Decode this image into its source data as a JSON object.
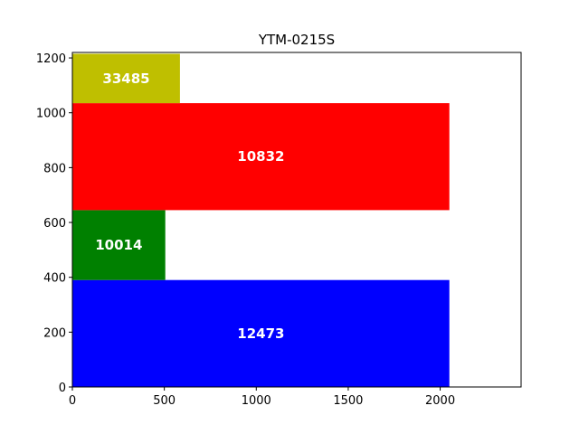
{
  "chart_data": {
    "type": "bar",
    "title": "YTM-0215S",
    "xlabel": "",
    "ylabel": "",
    "xlim": [
      0,
      2440
    ],
    "ylim": [
      0,
      1220
    ],
    "xticks": [
      0,
      500,
      1000,
      1500,
      2000
    ],
    "yticks": [
      0,
      200,
      400,
      600,
      800,
      1000,
      1200
    ],
    "grid": false,
    "rectangles": [
      {
        "id": "12473",
        "x0": 0,
        "x1": 2050,
        "y0": 0,
        "y1": 390,
        "color": "#0000ff"
      },
      {
        "id": "10014",
        "x0": 0,
        "x1": 505,
        "y0": 390,
        "y1": 645,
        "color": "#008000"
      },
      {
        "id": "10832",
        "x0": 0,
        "x1": 2050,
        "y0": 645,
        "y1": 1035,
        "color": "#ff0000"
      },
      {
        "id": "33485",
        "x0": 0,
        "x1": 585,
        "y0": 1035,
        "y1": 1215,
        "color": "#bfbf00"
      }
    ]
  }
}
